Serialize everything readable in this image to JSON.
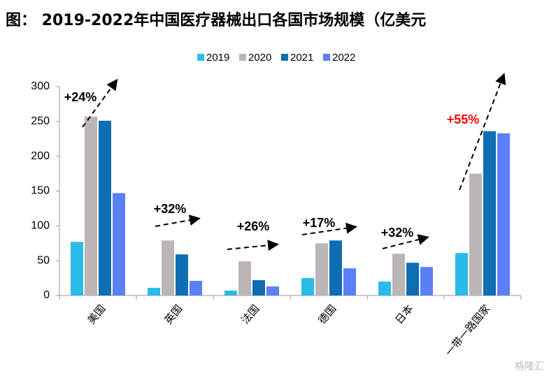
{
  "chart_data": {
    "type": "bar",
    "title": "图： 2019-2022年中国医疗器械出口各国市场规模（亿美元",
    "categories": [
      "美国",
      "英国",
      "法国",
      "德国",
      "日本",
      "一带一路国家"
    ],
    "series": [
      {
        "name": "2019",
        "color": "#2bbbe9",
        "values": [
          77,
          11,
          7,
          25,
          20,
          61
        ]
      },
      {
        "name": "2020",
        "color": "#bcb5b5",
        "values": [
          257,
          79,
          49,
          75,
          60,
          175
        ]
      },
      {
        "name": "2021",
        "color": "#0f6db3",
        "values": [
          251,
          59,
          22,
          79,
          47,
          236
        ]
      },
      {
        "name": "2022",
        "color": "#5b80f6",
        "values": [
          147,
          21,
          13,
          39,
          41,
          233
        ]
      }
    ],
    "ylim": [
      0,
      300
    ],
    "yticks": [
      0,
      50,
      100,
      150,
      200,
      250,
      300
    ],
    "grid": false,
    "annotations": [
      {
        "text": "+24%",
        "color": "#000000"
      },
      {
        "text": "+32%",
        "color": "#000000"
      },
      {
        "text": "+26%",
        "color": "#000000"
      },
      {
        "text": "+17%",
        "color": "#000000"
      },
      {
        "text": "+32%",
        "color": "#000000"
      },
      {
        "text": "+55%",
        "color": "#ff0000"
      }
    ],
    "watermark": "格隆汇"
  }
}
